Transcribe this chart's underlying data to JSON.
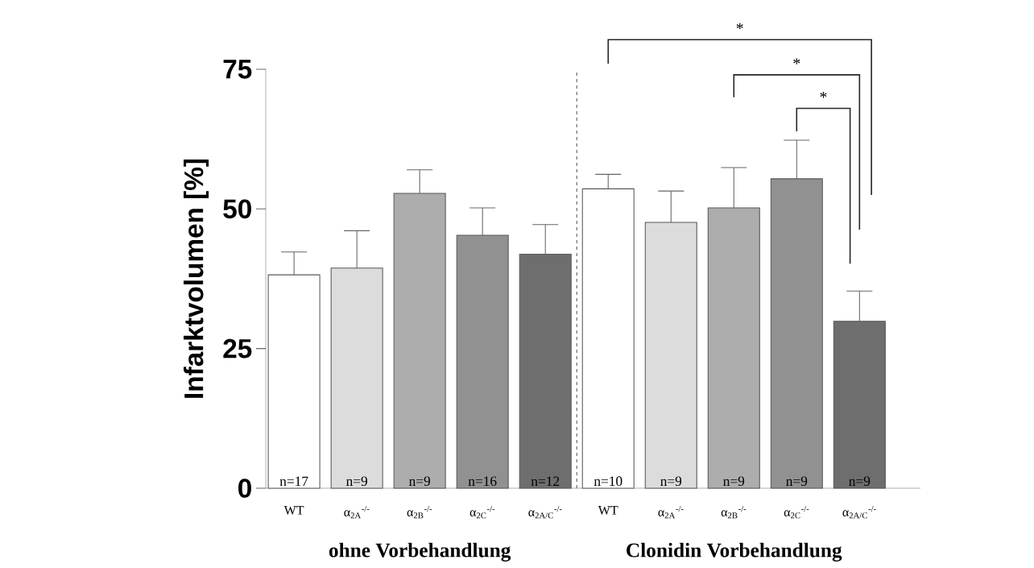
{
  "chart_data": {
    "type": "bar",
    "ylabel": "Infarktvolumen [%]",
    "categories": [
      "WT",
      "α$_{2A}$$^{-/-}$",
      "α$_{2B}$$^{-/-}$",
      "α$_{2C}$$^{-/-}$",
      "α$_{2A/C}$$^{-/-}$",
      "WT",
      "α$_{2A}$$^{-/-}$",
      "α$_{2B}$$^{-/-}$",
      "α$_{2C}$$^{-/-}$",
      "α$_{2A/C}$$^{-/-}$"
    ],
    "values": [
      38.2,
      39.4,
      52.8,
      45.3,
      41.9,
      53.6,
      47.6,
      50.2,
      55.4,
      29.9
    ],
    "errors": [
      4.1,
      6.7,
      4.2,
      4.9,
      5.3,
      2.6,
      5.6,
      7.2,
      6.9,
      5.4
    ],
    "colors": [
      "#ffffff",
      "#dcdcdc",
      "#adadad",
      "#919191",
      "#6e6e6e",
      "#ffffff",
      "#dcdcdc",
      "#adadad",
      "#919191",
      "#6e6e6e"
    ],
    "ylim": [
      0,
      75
    ],
    "yticks": [
      0,
      25,
      50,
      75
    ],
    "annotations": [
      "ohne Vorbehandlung",
      "Clonidin Vorbehandlung",
      "n=17",
      "n=9",
      "n=9",
      "n=16",
      "n=12",
      "n=10",
      "n=9",
      "n=9",
      "n=9",
      "n=9",
      "*",
      "*",
      "*"
    ]
  }
}
